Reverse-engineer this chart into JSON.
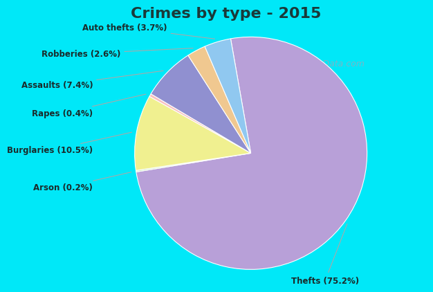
{
  "title": "Crimes by type - 2015",
  "title_fontsize": 16,
  "title_fontweight": "bold",
  "title_color": "#1a3a3a",
  "labels_ordered": [
    "Thefts",
    "Arson",
    "Burglaries",
    "Rapes",
    "Assaults",
    "Robberies",
    "Auto thefts"
  ],
  "values_ordered": [
    75.2,
    0.2,
    10.5,
    0.4,
    7.4,
    2.6,
    3.7
  ],
  "colors_ordered": [
    "#b8a0d8",
    "#c8e8b8",
    "#f0f090",
    "#f8c0c0",
    "#9090d0",
    "#f0c890",
    "#90c8f0"
  ],
  "label_texts_ordered": [
    "Thefts (75.2%)",
    "Arson (0.2%)",
    "Burglaries (10.5%)",
    "Rapes (0.4%)",
    "Assaults (7.4%)",
    "Robberies (2.6%)",
    "Auto thefts (3.7%)"
  ],
  "background_cyan": "#00e8f8",
  "background_green": "#c0e8d0",
  "watermark": "City-Data.com",
  "label_color": "#1a2a2a",
  "label_fontsize": 8.5
}
